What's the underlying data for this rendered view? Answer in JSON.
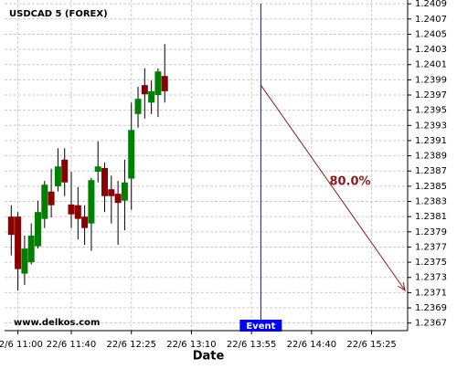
{
  "chart_data": {
    "type": "candlestick",
    "title": "USDCAD 5 (FOREX)",
    "x_label": "Date",
    "watermark": "www.delkos.com",
    "x": [
      655,
      660,
      665,
      670,
      675,
      680,
      685,
      690,
      695,
      700,
      705,
      710,
      715,
      720,
      725,
      730,
      735,
      740,
      745,
      750,
      755,
      760,
      765,
      770
    ],
    "open": [
      1.2381,
      1.2381,
      1.23735,
      1.2375,
      1.23771,
      1.23807,
      1.23843,
      1.2385,
      1.23885,
      1.23826,
      1.23825,
      1.2381,
      1.23801,
      1.23869,
      1.23874,
      1.23846,
      1.2384,
      1.23831,
      1.2386,
      1.23945,
      1.23983,
      1.2396,
      1.2397,
      1.23995
    ],
    "high": [
      1.23825,
      1.23816,
      1.23785,
      1.23801,
      1.23831,
      1.23857,
      1.23873,
      1.239,
      1.239,
      1.23869,
      1.23849,
      1.23825,
      1.23861,
      1.23909,
      1.23881,
      1.23864,
      1.23857,
      1.23885,
      1.2396,
      1.23981,
      1.24005,
      1.23989,
      1.24005,
      1.24037
    ],
    "low": [
      1.23759,
      1.23713,
      1.2372,
      1.23747,
      1.23768,
      1.23795,
      1.23809,
      1.23843,
      1.23837,
      1.23795,
      1.2378,
      1.23773,
      1.23765,
      1.23855,
      1.23816,
      1.23801,
      1.23773,
      1.23792,
      1.23819,
      1.23927,
      1.23939,
      1.23945,
      1.23941,
      1.2396
    ],
    "close": [
      1.23786,
      1.23741,
      1.23768,
      1.23785,
      1.23816,
      1.23852,
      1.23825,
      1.23876,
      1.23855,
      1.23813,
      1.23807,
      1.23795,
      1.23858,
      1.23876,
      1.23837,
      1.23837,
      1.23828,
      1.23855,
      1.23924,
      1.23965,
      1.23971,
      1.23975,
      1.24001,
      1.23975
    ],
    "up_color": "#008000",
    "down_color": "#8b0000",
    "xlim": [
      650,
      952
    ],
    "xticks": [
      {
        "value": 660,
        "label": "22/6 11:00"
      },
      {
        "value": 700,
        "label": "22/6 11:40"
      },
      {
        "value": 745,
        "label": "22/6 12:25"
      },
      {
        "value": 790,
        "label": "22/6 13:10"
      },
      {
        "value": 835,
        "label": "22/6 13:55"
      },
      {
        "value": 880,
        "label": "22/6 14:40"
      },
      {
        "value": 925,
        "label": "22/6 15:25"
      }
    ],
    "ylim": [
      1.2366,
      1.24095
    ],
    "yticks": [
      1.2367,
      1.2369,
      1.2371,
      1.2373,
      1.2375,
      1.2377,
      1.2379,
      1.2381,
      1.2383,
      1.2385,
      1.2387,
      1.2389,
      1.2391,
      1.2393,
      1.2395,
      1.2397,
      1.2399,
      1.2401,
      1.2403,
      1.2405,
      1.2407,
      1.2409
    ],
    "grid": true,
    "event": {
      "x": 842,
      "label": "Event",
      "color": "#0000ff"
    },
    "forecast": {
      "x": [
        842,
        950
      ],
      "y": [
        1.23983,
        1.23713
      ],
      "label": "80.0%",
      "color": "#8b1a1a"
    }
  }
}
